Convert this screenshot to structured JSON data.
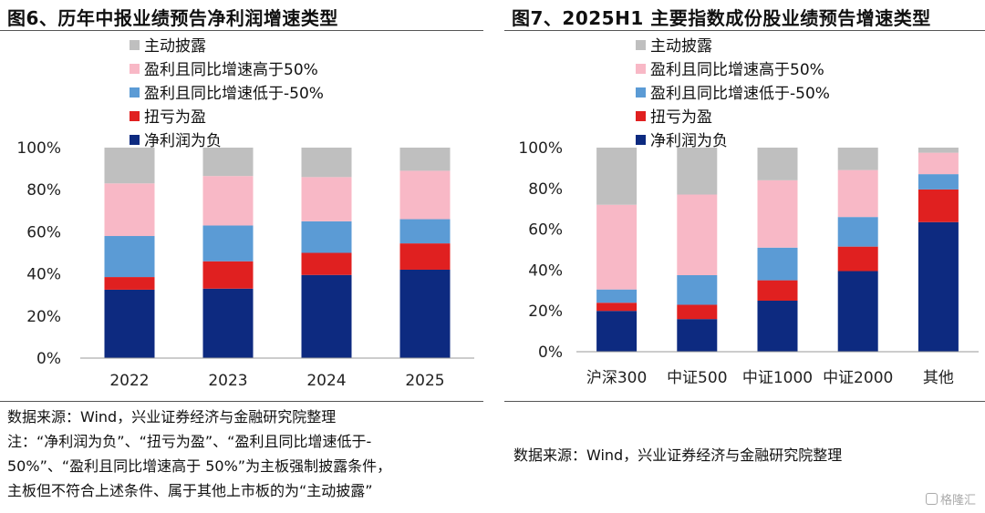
{
  "left_panel": {
    "title": "图6、历年中报业绩预告净利润增速类型",
    "source": "数据来源：Wind，兴业证券经济与金融研究院整理",
    "note_lines": [
      "注：“净利润为负”、“扭亏为盈”、“盈利且同比增速低于-",
      "50%”、“盈利且同比增速高于 50%”为主板强制披露条件，",
      "主板但不符合上述条件、属于其他上市板的为“主动披露”"
    ]
  },
  "right_panel": {
    "title": "图7、2025H1 主要指数成份股业绩预告增速类型",
    "source": "数据来源：Wind，兴业证券经济与金融研究院整理"
  },
  "watermark": "格隆汇",
  "colors": {
    "主动披露": "#bfbfbf",
    "盈利且同比增速高于50%": "#f8b8c6",
    "盈利且同比增速低于-50%": "#5b9bd5",
    "扭亏为盈": "#e02020",
    "净利润为负": "#0d2a80"
  },
  "chart_data": [
    {
      "type": "bar",
      "stacked": true,
      "categories": [
        "2022",
        "2023",
        "2024",
        "2025"
      ],
      "ylim": [
        0,
        100
      ],
      "yticks": [
        "0%",
        "20%",
        "40%",
        "60%",
        "80%",
        "100%"
      ],
      "legend_position": "top",
      "series": [
        {
          "name": "净利润为负",
          "values": [
            32.5,
            33,
            39.5,
            42
          ]
        },
        {
          "name": "扭亏为盈",
          "values": [
            6,
            13,
            10.5,
            12.5
          ]
        },
        {
          "name": "盈利且同比增速低于-50%",
          "values": [
            19.5,
            17,
            15,
            11.5
          ]
        },
        {
          "name": "盈利且同比增速高于50%",
          "values": [
            25,
            23.5,
            21,
            23
          ]
        },
        {
          "name": "主动披露",
          "values": [
            17,
            13.5,
            14,
            11
          ]
        }
      ]
    },
    {
      "type": "bar",
      "stacked": true,
      "categories": [
        "沪深300",
        "中证500",
        "中证1000",
        "中证2000",
        "其他"
      ],
      "ylim": [
        0,
        100
      ],
      "yticks": [
        "0%",
        "20%",
        "40%",
        "60%",
        "80%",
        "100%"
      ],
      "legend_position": "top",
      "series": [
        {
          "name": "净利润为负",
          "values": [
            20,
            16,
            25,
            39.5,
            63.5
          ]
        },
        {
          "name": "扭亏为盈",
          "values": [
            4,
            7,
            10,
            12,
            16
          ]
        },
        {
          "name": "盈利且同比增速低于-50%",
          "values": [
            6.5,
            14.5,
            16,
            14.5,
            7.5
          ]
        },
        {
          "name": "盈利且同比增速高于50%",
          "values": [
            41.5,
            39.5,
            33,
            23,
            10.5
          ]
        },
        {
          "name": "主动披露",
          "values": [
            28,
            23,
            16,
            11,
            2.5
          ]
        }
      ]
    }
  ]
}
